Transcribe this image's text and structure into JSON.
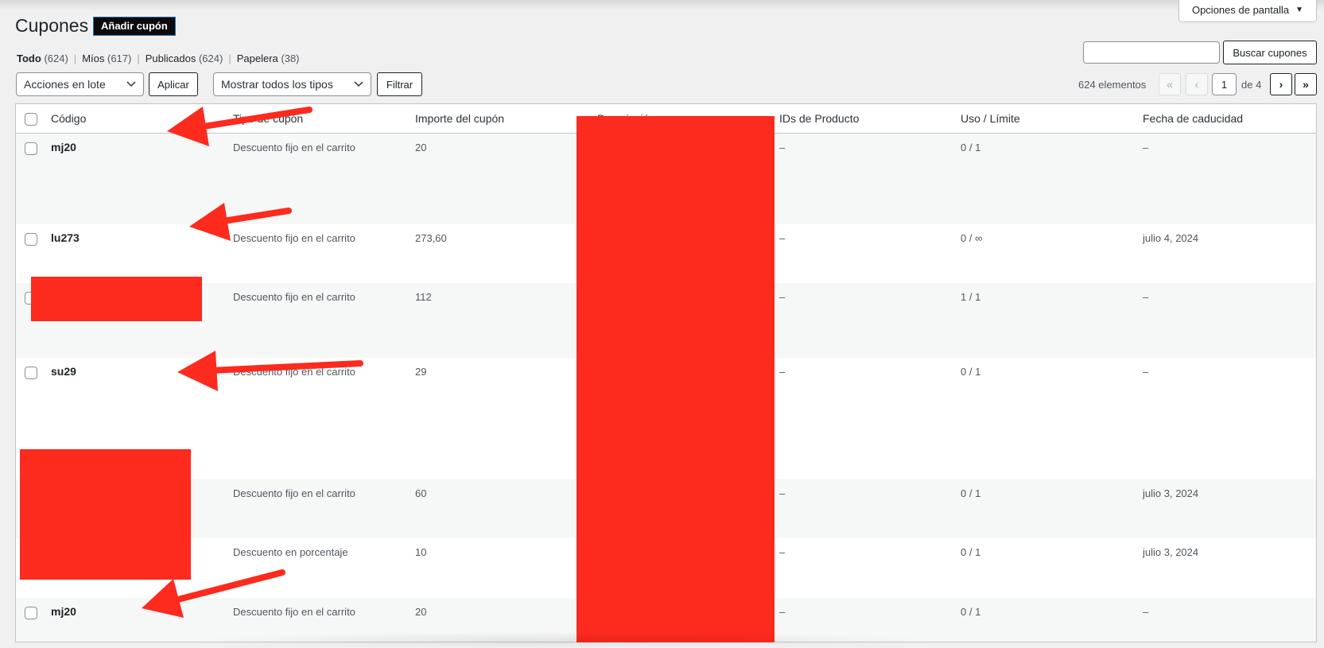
{
  "screen_options": {
    "label": "Opciones de pantalla"
  },
  "header": {
    "title": "Cupones",
    "add_button": "Añadir cupón"
  },
  "views": [
    {
      "label": "Todo",
      "count": "(624)"
    },
    {
      "label": "Míos",
      "count": "(617)"
    },
    {
      "label": "Publicados",
      "count": "(624)"
    },
    {
      "label": "Papelera",
      "count": "(38)"
    }
  ],
  "views_separator": "|",
  "search": {
    "button_label": "Buscar cupones",
    "value": ""
  },
  "bulk_actions": {
    "selected": "Acciones en lote",
    "apply_label": "Aplicar"
  },
  "type_filter": {
    "selected": "Mostrar todos los tipos",
    "filter_label": "Filtrar"
  },
  "pagination": {
    "items_count": "624 elementos",
    "first": "«",
    "prev": "‹",
    "current_page": "1",
    "of_label": "de 4",
    "next": "›",
    "last": "»"
  },
  "table": {
    "columns": [
      "Código",
      "Tipo de cupón",
      "Importe del cupón",
      "Descripción",
      "IDs de Producto",
      "Uso / Límite",
      "Fecha de caducidad"
    ],
    "rows": [
      {
        "code": "mj20",
        "type": "Descuento fijo en el carrito",
        "amount": "20",
        "product_ids": "–",
        "usage": "0 / 1",
        "expiry": "–"
      },
      {
        "code": "lu273",
        "type": "Descuento fijo en el carrito",
        "amount": "273,60",
        "product_ids": "–",
        "usage": "0 / ∞",
        "expiry": "julio 4, 2024"
      },
      {
        "code": "",
        "type": "Descuento fijo en el carrito",
        "amount": "112",
        "product_ids": "–",
        "usage": "1 / 1",
        "expiry": "–"
      },
      {
        "code": "su29",
        "type": "Descuento fijo en el carrito",
        "amount": "29",
        "product_ids": "–",
        "usage": "0 / 1",
        "expiry": "–"
      },
      {
        "code": "",
        "type": "Descuento fijo en el carrito",
        "amount": "60",
        "product_ids": "–",
        "usage": "0 / 1",
        "expiry": "julio 3, 2024"
      },
      {
        "code": "",
        "type": "Descuento en porcentaje",
        "amount": "10",
        "product_ids": "–",
        "usage": "0 / 1",
        "expiry": "julio 3, 2024"
      },
      {
        "code": "mj20",
        "type": "Descuento fijo en el carrito",
        "amount": "20",
        "product_ids": "–",
        "usage": "0 / 1",
        "expiry": "–"
      }
    ]
  },
  "colors": {
    "redaction": "#fd2a1e",
    "arrow": "#fd2a1e",
    "stripe": "#f6f7f7"
  }
}
